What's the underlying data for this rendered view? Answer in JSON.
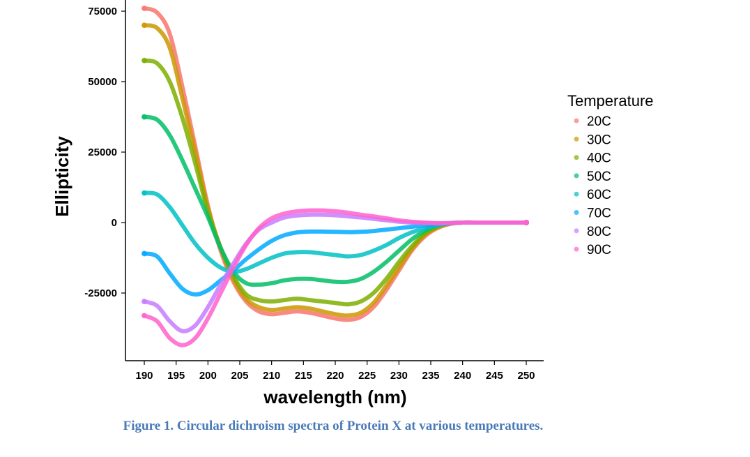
{
  "chart_data": {
    "type": "line",
    "title": "",
    "xlabel": "wavelength (nm)",
    "ylabel": "Ellipticity",
    "xlim": [
      187,
      250
    ],
    "ylim": [
      -49000,
      76500
    ],
    "x_ticks": [
      190,
      195,
      200,
      205,
      210,
      215,
      220,
      225,
      230,
      235,
      240,
      245,
      250
    ],
    "y_ticks": [
      -25000,
      0,
      25000,
      50000,
      75000
    ],
    "y_tick_labels": [
      "-25000",
      "0",
      "25000",
      "50000",
      "75000"
    ],
    "legend": {
      "title": "Temperature",
      "position": "right"
    },
    "x": [
      190,
      192,
      194,
      196,
      198,
      200,
      202,
      204,
      206,
      208,
      210,
      212,
      214,
      216,
      218,
      220,
      222,
      224,
      226,
      228,
      230,
      232,
      234,
      236,
      238,
      240,
      242,
      244,
      246,
      248,
      250
    ],
    "series": [
      {
        "name": "20C",
        "color": "#F8766D",
        "values": [
          76000,
          74500,
          67000,
          48000,
          27000,
          6000,
          -10000,
          -21000,
          -28000,
          -31500,
          -32500,
          -32000,
          -31500,
          -32000,
          -33000,
          -34000,
          -34500,
          -33500,
          -30000,
          -24000,
          -17000,
          -10000,
          -5000,
          -2000,
          -500,
          0,
          0,
          0,
          0,
          0,
          0
        ]
      },
      {
        "name": "30C",
        "color": "#CD9600",
        "values": [
          70000,
          69000,
          62000,
          44000,
          25000,
          5000,
          -9000,
          -20000,
          -27000,
          -30000,
          -31000,
          -30500,
          -30000,
          -30500,
          -31500,
          -32500,
          -33000,
          -32000,
          -28500,
          -22500,
          -16000,
          -9500,
          -4500,
          -1800,
          -400,
          0,
          0,
          0,
          0,
          0,
          0
        ]
      },
      {
        "name": "40C",
        "color": "#7CAE00",
        "values": [
          57500,
          56500,
          50000,
          37000,
          21000,
          4000,
          -9000,
          -19000,
          -25500,
          -27500,
          -28000,
          -27500,
          -27000,
          -27500,
          -28000,
          -28500,
          -29000,
          -28000,
          -25000,
          -20000,
          -14000,
          -8500,
          -4000,
          -1500,
          -300,
          0,
          0,
          0,
          0,
          0,
          0
        ]
      },
      {
        "name": "50C",
        "color": "#00BE67",
        "values": [
          37500,
          36500,
          31000,
          22000,
          12000,
          2000,
          -9000,
          -17500,
          -21500,
          -22000,
          -21500,
          -20500,
          -20000,
          -20000,
          -20500,
          -21000,
          -21000,
          -20000,
          -17500,
          -14000,
          -10000,
          -6000,
          -3000,
          -1000,
          -200,
          0,
          0,
          0,
          0,
          0,
          0
        ]
      },
      {
        "name": "60C",
        "color": "#00BFC4",
        "values": [
          10500,
          10000,
          5500,
          -1000,
          -7500,
          -12500,
          -16000,
          -17500,
          -16500,
          -14500,
          -12500,
          -11000,
          -10500,
          -10500,
          -11000,
          -11500,
          -12000,
          -11500,
          -10000,
          -8000,
          -5500,
          -3500,
          -2000,
          -1000,
          -300,
          0,
          0,
          0,
          0,
          0,
          0
        ]
      },
      {
        "name": "70C",
        "color": "#00A9FF",
        "values": [
          -11000,
          -12000,
          -18000,
          -23500,
          -25500,
          -24000,
          -20500,
          -17000,
          -13000,
          -9500,
          -6500,
          -4500,
          -3500,
          -3200,
          -3200,
          -3300,
          -3400,
          -3300,
          -3000,
          -2500,
          -2000,
          -1500,
          -1000,
          -600,
          -300,
          0,
          0,
          0,
          0,
          0,
          0
        ]
      },
      {
        "name": "80C",
        "color": "#C77CFF",
        "values": [
          -28000,
          -29500,
          -35000,
          -38500,
          -36500,
          -30000,
          -22000,
          -14500,
          -7500,
          -2500,
          0,
          1800,
          2500,
          2800,
          2800,
          2600,
          2200,
          1800,
          1300,
          800,
          300,
          0,
          -200,
          -300,
          -200,
          0,
          0,
          0,
          0,
          0,
          0
        ]
      },
      {
        "name": "90C",
        "color": "#FF61CC",
        "values": [
          -33000,
          -35000,
          -41000,
          -43500,
          -41000,
          -34000,
          -25000,
          -16000,
          -8000,
          -2000,
          1500,
          3200,
          4000,
          4300,
          4300,
          4000,
          3500,
          2800,
          2200,
          1500,
          800,
          300,
          0,
          -200,
          -200,
          0,
          0,
          0,
          0,
          0,
          0
        ]
      }
    ]
  },
  "caption": "Figure 1. Circular dichroism spectra of Protein X at various temperatures."
}
